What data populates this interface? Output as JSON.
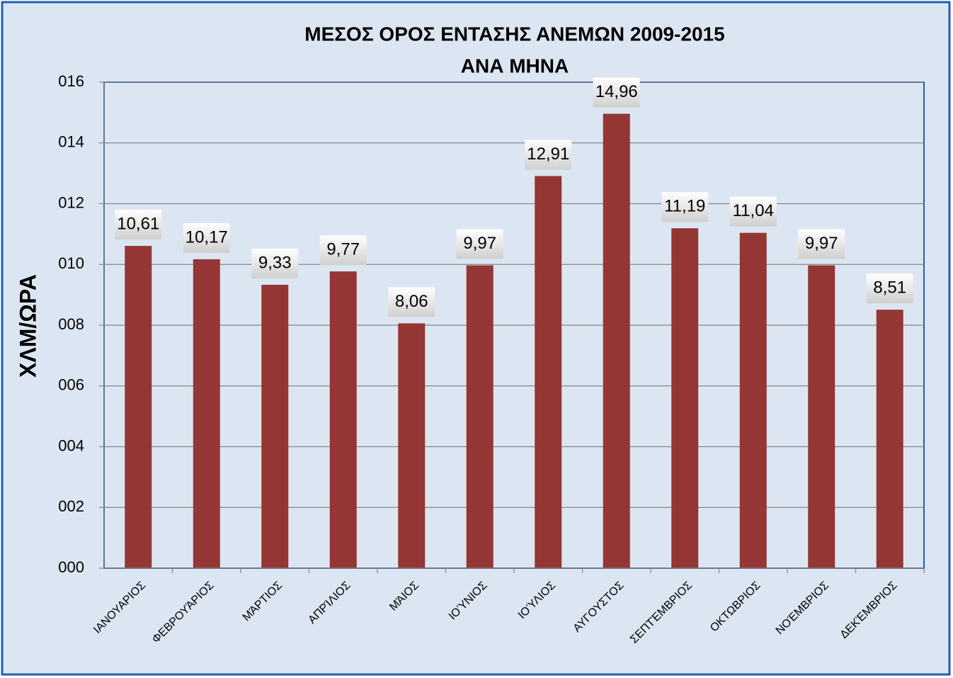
{
  "chart_data": {
    "type": "bar",
    "title": [
      "ΜΕΣΟΣ ΟΡΟΣ ΕΝΤΑΣΗΣ ΑΝΕΜΩΝ  2009-2015",
      "ΑΝΑ  ΜΗΝΑ"
    ],
    "y_label": "ΧΛΜ/ΩΡΑ",
    "categories": [
      "ΙΑΝΟΥΑΡΙΟΣ",
      "ΦΕΒΡΟΥΆΡΙΟΣ",
      "ΜΆΡΤΙΟΣ",
      "ΑΠΡΊΛΙΟΣ",
      "ΜΆΙΟΣ",
      "ΙΟΎΝΙΟΣ",
      "ΙΟΎΛΙΟΣ",
      "ΑΥΓΟΥΣΤΟΣ",
      "ΣΕΠΤΈΜΒΡΙΟΣ",
      "ΟΚΤΩΒΡΙΟΣ",
      "ΝΟΈΜΒΡΙΟΣ",
      "ΔΕΚΈΜΒΡΙΟΣ"
    ],
    "values": [
      10.61,
      10.17,
      9.33,
      9.77,
      8.06,
      9.97,
      12.91,
      14.96,
      11.19,
      11.04,
      9.97,
      8.51
    ],
    "value_labels": [
      "10,61",
      "10,17",
      "9,33",
      "9,77",
      "8,06",
      "9,97",
      "12,91",
      "14,96",
      "11,19",
      "11,04",
      "9,97",
      "8,51"
    ],
    "color": "#943634",
    "ylim": [
      0,
      16
    ],
    "yticks": [
      {
        "value": 0,
        "label": "000"
      },
      {
        "value": 2,
        "label": "002"
      },
      {
        "value": 4,
        "label": "004"
      },
      {
        "value": 6,
        "label": "006"
      },
      {
        "value": 8,
        "label": "008"
      },
      {
        "value": 10,
        "label": "010"
      },
      {
        "value": 12,
        "label": "012"
      },
      {
        "value": 14,
        "label": "014"
      },
      {
        "value": 16,
        "label": "016"
      }
    ],
    "grid": true
  }
}
